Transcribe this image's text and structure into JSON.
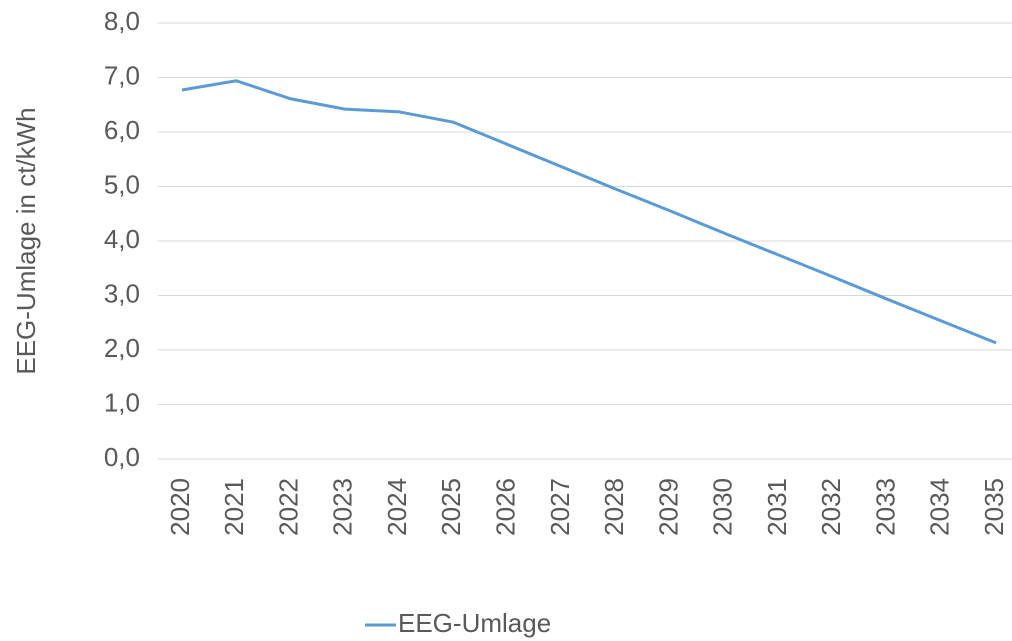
{
  "chart_data": {
    "type": "line",
    "y_label": "EEG-Umlage in ct/kWh",
    "categories": [
      "2020",
      "2021",
      "2022",
      "2023",
      "2024",
      "2025",
      "2026",
      "2027",
      "2028",
      "2029",
      "2030",
      "2031",
      "2032",
      "2033",
      "2034",
      "2035"
    ],
    "series": [
      {
        "name": "EEG-Umlage",
        "color": "#5b9bd5",
        "values": [
          6.77,
          6.94,
          6.61,
          6.42,
          6.37,
          6.18,
          5.77,
          5.36,
          4.95,
          4.55,
          4.14,
          3.74,
          3.34,
          2.93,
          2.53,
          2.13
        ]
      }
    ],
    "ylim": [
      0,
      8
    ],
    "yticks": [
      {
        "value": 0,
        "label": "0,0"
      },
      {
        "value": 1,
        "label": "1,0"
      },
      {
        "value": 2,
        "label": "2,0"
      },
      {
        "value": 3,
        "label": "3,0"
      },
      {
        "value": 4,
        "label": "4,0"
      },
      {
        "value": 5,
        "label": "5,0"
      },
      {
        "value": 6,
        "label": "6,0"
      },
      {
        "value": 7,
        "label": "7,0"
      },
      {
        "value": 8,
        "label": "8,0"
      }
    ],
    "grid": true
  }
}
